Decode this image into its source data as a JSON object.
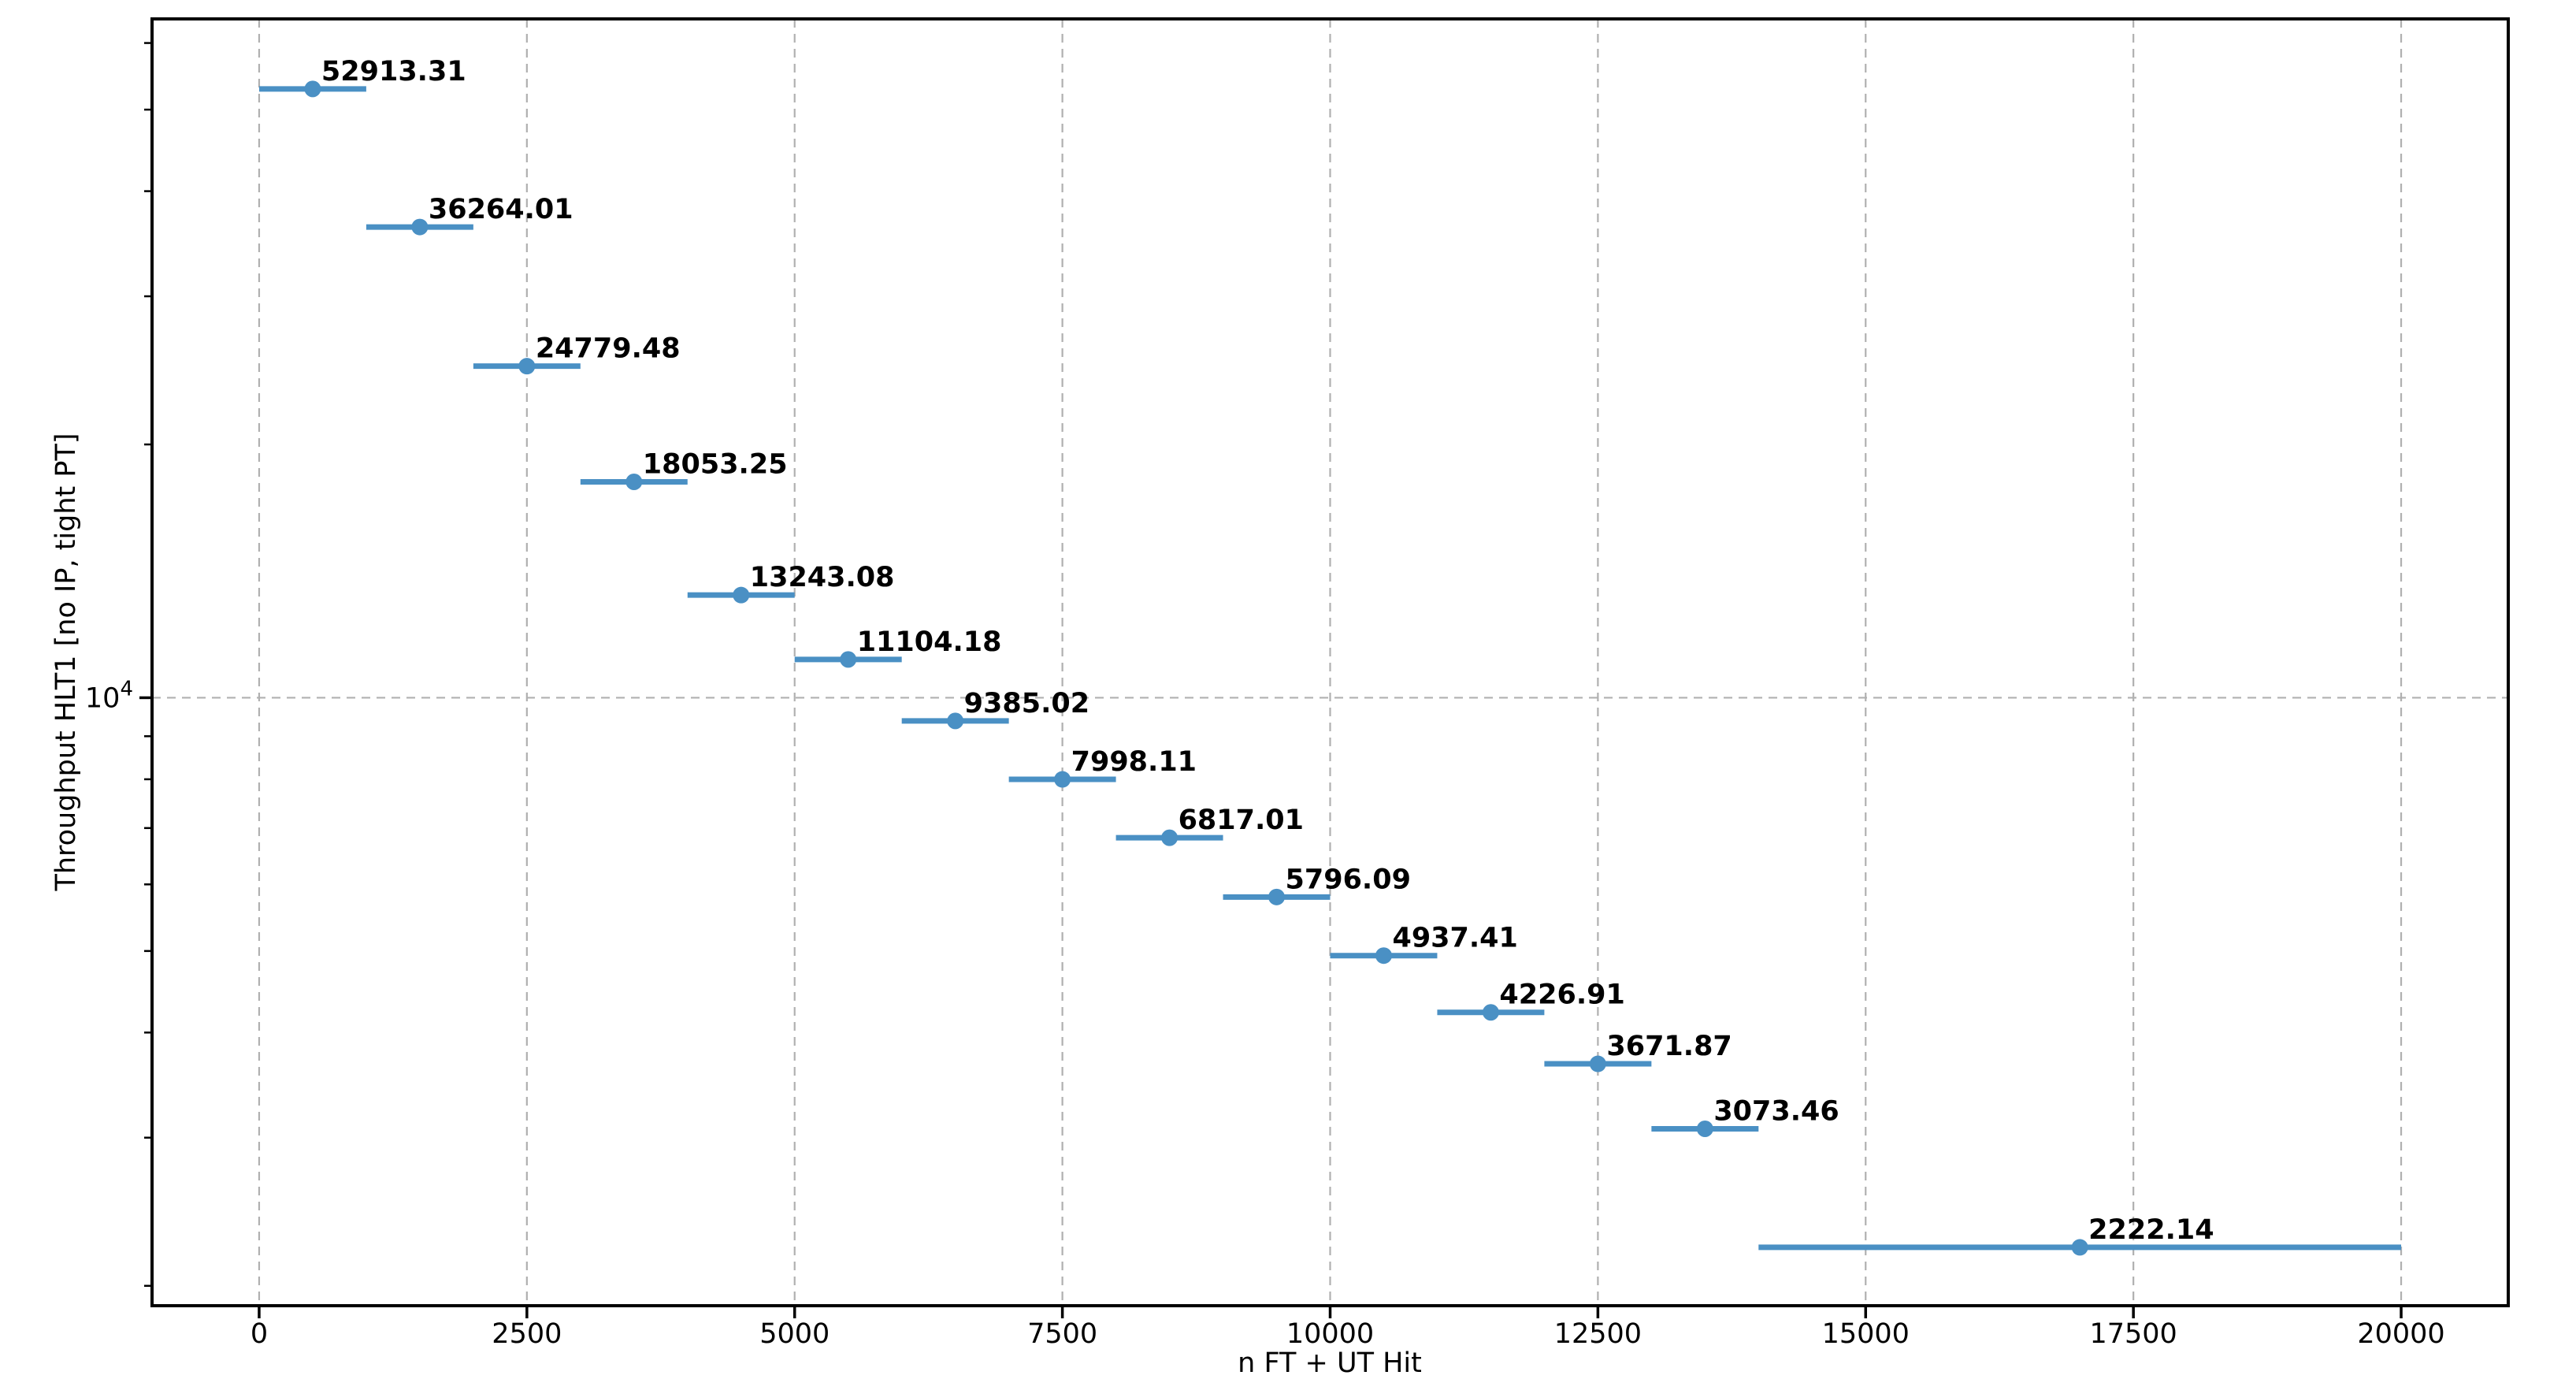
{
  "chart_data": {
    "type": "scatter",
    "title": "",
    "xlabel": "n FT + UT Hit",
    "ylabel": "Throughput HLT1 [no IP, tight PT]",
    "x_scale": "linear",
    "y_scale": "log",
    "xlim": [
      -1000,
      21000
    ],
    "ylim": [
      1894,
      64090
    ],
    "grid": {
      "major_x": true,
      "major_y": true,
      "style": "dashed",
      "color": "#b0b0b0"
    },
    "colors": {
      "series": "#4a90c4",
      "spine": "#000000",
      "text": "#000000",
      "grid": "#b0b0b0"
    },
    "x_ticks": [
      {
        "value": 0,
        "label": "0"
      },
      {
        "value": 2500,
        "label": "2500"
      },
      {
        "value": 5000,
        "label": "5000"
      },
      {
        "value": 7500,
        "label": "7500"
      },
      {
        "value": 10000,
        "label": "10000"
      },
      {
        "value": 12500,
        "label": "12500"
      },
      {
        "value": 15000,
        "label": "15000"
      },
      {
        "value": 17500,
        "label": "17500"
      },
      {
        "value": 20000,
        "label": "20000"
      }
    ],
    "y_major_ticks": [
      {
        "value": 10000,
        "mantissa": "10",
        "exponent": "4"
      }
    ],
    "y_minor_ticks": [
      2000,
      3000,
      4000,
      5000,
      6000,
      7000,
      8000,
      9000,
      20000,
      30000,
      40000,
      50000,
      60000
    ],
    "series": [
      {
        "name": "throughput-vs-hits",
        "marker": "circle",
        "color": "#4a90c4",
        "points": [
          {
            "x": 500,
            "xerr_minus": 500,
            "xerr_plus": 500,
            "y": 52913.31,
            "label": "52913.31"
          },
          {
            "x": 1500,
            "xerr_minus": 500,
            "xerr_plus": 500,
            "y": 36264.01,
            "label": "36264.01"
          },
          {
            "x": 2500,
            "xerr_minus": 500,
            "xerr_plus": 500,
            "y": 24779.48,
            "label": "24779.48"
          },
          {
            "x": 3500,
            "xerr_minus": 500,
            "xerr_plus": 500,
            "y": 18053.25,
            "label": "18053.25"
          },
          {
            "x": 4500,
            "xerr_minus": 500,
            "xerr_plus": 500,
            "y": 13243.08,
            "label": "13243.08"
          },
          {
            "x": 5500,
            "xerr_minus": 500,
            "xerr_plus": 500,
            "y": 11104.18,
            "label": "11104.18"
          },
          {
            "x": 6500,
            "xerr_minus": 500,
            "xerr_plus": 500,
            "y": 9385.02,
            "label": "9385.02"
          },
          {
            "x": 7500,
            "xerr_minus": 500,
            "xerr_plus": 500,
            "y": 7998.11,
            "label": "7998.11"
          },
          {
            "x": 8500,
            "xerr_minus": 500,
            "xerr_plus": 500,
            "y": 6817.01,
            "label": "6817.01"
          },
          {
            "x": 9500,
            "xerr_minus": 500,
            "xerr_plus": 500,
            "y": 5796.09,
            "label": "5796.09"
          },
          {
            "x": 10500,
            "xerr_minus": 500,
            "xerr_plus": 500,
            "y": 4937.41,
            "label": "4937.41"
          },
          {
            "x": 11500,
            "xerr_minus": 500,
            "xerr_plus": 500,
            "y": 4226.91,
            "label": "4226.91"
          },
          {
            "x": 12500,
            "xerr_minus": 500,
            "xerr_plus": 500,
            "y": 3671.87,
            "label": "3671.87"
          },
          {
            "x": 13500,
            "xerr_minus": 500,
            "xerr_plus": 500,
            "y": 3073.46,
            "label": "3073.46"
          },
          {
            "x": 17000,
            "xerr_minus": 3000,
            "xerr_plus": 3000,
            "y": 2222.14,
            "label": "2222.14"
          }
        ]
      }
    ]
  }
}
